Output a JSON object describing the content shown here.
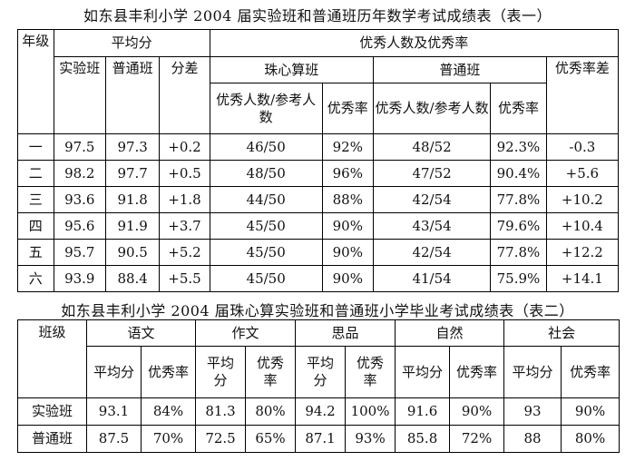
{
  "table1": {
    "title": "如东县丰利小学 2004 届实验班和普通班历年数学考试成绩表（表一）",
    "headers": {
      "grade": "年级",
      "average": "平均分",
      "exp_class": "实验班",
      "reg_class": "普通班",
      "diff": "分差",
      "excellence": "优秀人数及优秀率",
      "abacus_class": "珠心算班",
      "regular_class": "普通班",
      "excellent_over_total": "优秀人数/参考人数",
      "excellent_rate": "优秀率",
      "rate_diff": "优秀率差"
    },
    "rows": [
      {
        "grade": "一",
        "exp_avg": "97.5",
        "reg_avg": "97.3",
        "diff": "+0.2",
        "abacus_count": "46/50",
        "abacus_rate": "92%",
        "reg_count": "48/52",
        "reg_rate": "92.3%",
        "rate_diff": "-0.3"
      },
      {
        "grade": "二",
        "exp_avg": "98.2",
        "reg_avg": "97.7",
        "diff": "+0.5",
        "abacus_count": "48/50",
        "abacus_rate": "96%",
        "reg_count": "47/52",
        "reg_rate": "90.4%",
        "rate_diff": "+5.6"
      },
      {
        "grade": "三",
        "exp_avg": "93.6",
        "reg_avg": "91.8",
        "diff": "+1.8",
        "abacus_count": "44/50",
        "abacus_rate": "88%",
        "reg_count": "42/54",
        "reg_rate": "77.8%",
        "rate_diff": "+10.2"
      },
      {
        "grade": "四",
        "exp_avg": "95.6",
        "reg_avg": "91.9",
        "diff": "+3.7",
        "abacus_count": "45/50",
        "abacus_rate": "90%",
        "reg_count": "43/54",
        "reg_rate": "79.6%",
        "rate_diff": "+10.4"
      },
      {
        "grade": "五",
        "exp_avg": "95.7",
        "reg_avg": "90.5",
        "diff": "+5.2",
        "abacus_count": "45/50",
        "abacus_rate": "90%",
        "reg_count": "42/54",
        "reg_rate": "77.8%",
        "rate_diff": "+12.2"
      },
      {
        "grade": "六",
        "exp_avg": "93.9",
        "reg_avg": "88.4",
        "diff": "+5.5",
        "abacus_count": "45/50",
        "abacus_rate": "90%",
        "reg_count": "41/54",
        "reg_rate": "75.9%",
        "rate_diff": "+14.1"
      }
    ]
  },
  "table2": {
    "title": "如东县丰利小学 2004 届珠心算实验班和普通班小学毕业考试成绩表（表二）",
    "headers": {
      "class": "班级",
      "subjects": [
        "语文",
        "作文",
        "思品",
        "自然",
        "社会"
      ],
      "avg": "平均分",
      "rate": "优秀率"
    },
    "rows": [
      {
        "class": "实验班",
        "values": [
          "93.1",
          "84%",
          "81.3",
          "80%",
          "94.2",
          "100%",
          "91.6",
          "90%",
          "93",
          "90%"
        ]
      },
      {
        "class": "普通班",
        "values": [
          "87.5",
          "70%",
          "72.5",
          "65%",
          "87.1",
          "93%",
          "85.8",
          "72%",
          "88",
          "80%"
        ]
      }
    ]
  }
}
